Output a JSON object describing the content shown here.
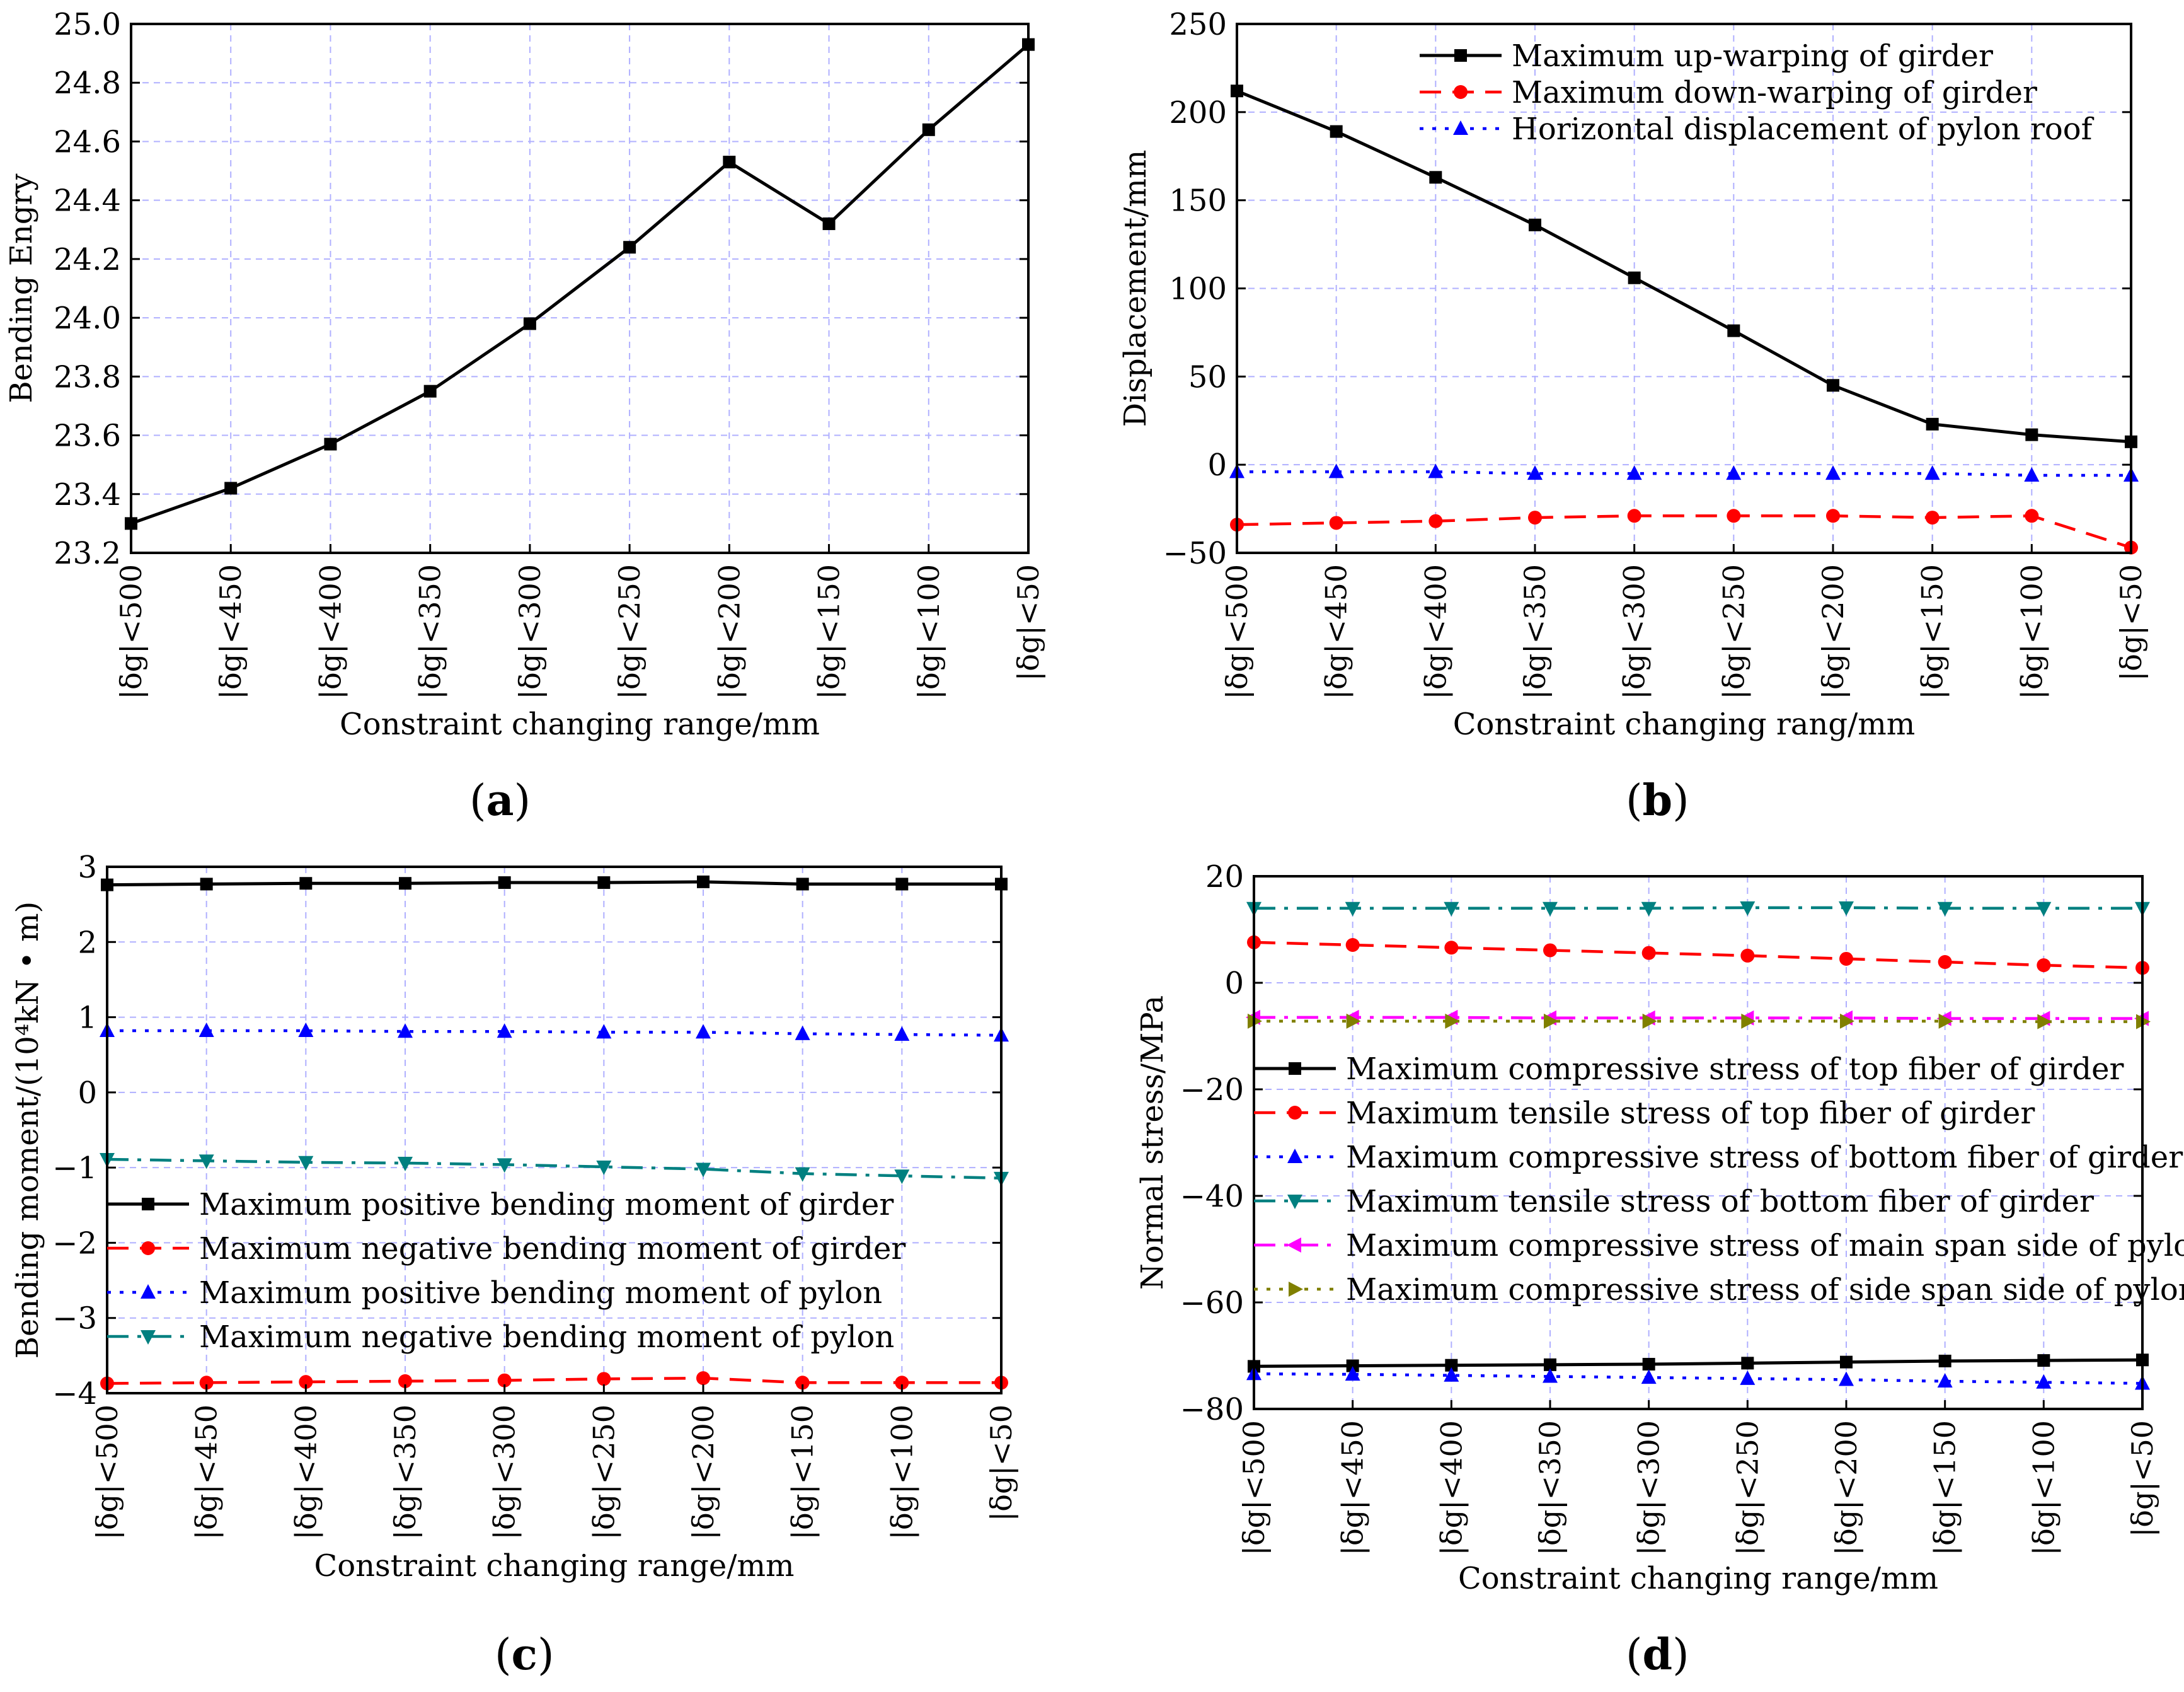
{
  "colors": {
    "black": "#000000",
    "red": "#ff0000",
    "blue": "#0000ff",
    "teal": "#008080",
    "magenta": "#ff00ff",
    "olive": "#808000",
    "grid": "#b0b0ff"
  },
  "x_categories": [
    "|δg|<500",
    "|δg|<450",
    "|δg|<400",
    "|δg|<350",
    "|δg|<300",
    "|δg|<250",
    "|δg|<200",
    "|δg|<150",
    "|δg|<100",
    "|δg|<50"
  ],
  "panel_labels": [
    "a",
    "b",
    "c",
    "d"
  ],
  "chart_data": [
    {
      "id": "a",
      "type": "line",
      "title": "",
      "xlabel": "Constraint changing range/mm",
      "ylabel": "Bending Engry",
      "ylim": [
        23.2,
        25.0
      ],
      "yticks": [
        23.2,
        23.4,
        23.6,
        23.8,
        24.0,
        24.2,
        24.4,
        24.6,
        24.8,
        25.0
      ],
      "ytick_labels": [
        "23.2",
        "23.4",
        "23.6",
        "23.8",
        "24.0",
        "24.2",
        "24.4",
        "24.6",
        "24.8",
        "25.0"
      ],
      "grid": true,
      "legend": "none",
      "series": [
        {
          "name": "Bending energy",
          "color": "black",
          "dash": "solid",
          "marker": "square",
          "values": [
            23.3,
            23.42,
            23.57,
            23.75,
            23.98,
            24.24,
            24.53,
            24.32,
            24.64,
            24.93
          ]
        }
      ]
    },
    {
      "id": "b",
      "type": "line",
      "title": "",
      "xlabel": "Constraint changing rang/mm",
      "ylabel": "Displacement/mm",
      "ylim": [
        -50,
        250
      ],
      "yticks": [
        -50,
        0,
        50,
        100,
        150,
        200,
        250
      ],
      "ytick_labels": [
        "−50",
        "0",
        "50",
        "100",
        "150",
        "200",
        "250"
      ],
      "grid": true,
      "legend": "top-right",
      "series": [
        {
          "name": "Maximum up-warping of girder",
          "color": "black",
          "dash": "solid",
          "marker": "square",
          "values": [
            212,
            189,
            163,
            136,
            106,
            76,
            45,
            23,
            17,
            13
          ]
        },
        {
          "name": "Maximum down-warping of girder",
          "color": "red",
          "dash": "dash",
          "marker": "circle",
          "values": [
            -34,
            -33,
            -32,
            -30,
            -29,
            -29,
            -29,
            -30,
            -29,
            -47
          ]
        },
        {
          "name": "Horizontal displacement of pylon roof",
          "color": "blue",
          "dash": "dot",
          "marker": "triangle-up",
          "values": [
            -4,
            -4,
            -4,
            -5,
            -5,
            -5,
            -5,
            -5,
            -6,
            -6
          ]
        }
      ]
    },
    {
      "id": "c",
      "type": "line",
      "title": "",
      "xlabel": "Constraint changing range/mm",
      "ylabel": "Bending moment/(10⁴kN • m)",
      "ylim": [
        -4,
        3
      ],
      "yticks": [
        -4,
        -3,
        -2,
        -1,
        0,
        1,
        2,
        3
      ],
      "ytick_labels": [
        "−4",
        "−3",
        "−2",
        "−1",
        "0",
        "1",
        "2",
        "3"
      ],
      "grid": true,
      "legend": "lower-left",
      "series": [
        {
          "name": "Maximum positive bending moment of girder",
          "color": "black",
          "dash": "solid",
          "marker": "square",
          "values": [
            2.76,
            2.77,
            2.78,
            2.78,
            2.79,
            2.79,
            2.8,
            2.77,
            2.77,
            2.77
          ]
        },
        {
          "name": "Maximum negative bending moment of girder",
          "color": "red",
          "dash": "dash",
          "marker": "circle",
          "values": [
            -3.87,
            -3.86,
            -3.85,
            -3.84,
            -3.83,
            -3.81,
            -3.8,
            -3.86,
            -3.86,
            -3.86
          ]
        },
        {
          "name": "Maximum positive bending moment of pylon",
          "color": "blue",
          "dash": "dot",
          "marker": "triangle-up",
          "values": [
            0.82,
            0.82,
            0.82,
            0.81,
            0.81,
            0.8,
            0.8,
            0.78,
            0.77,
            0.76
          ]
        },
        {
          "name": "Maximum negative bending moment of pylon",
          "color": "teal",
          "dash": "dashdot",
          "marker": "triangle-down",
          "values": [
            -0.89,
            -0.91,
            -0.93,
            -0.94,
            -0.96,
            -0.99,
            -1.02,
            -1.08,
            -1.11,
            -1.14
          ]
        }
      ]
    },
    {
      "id": "d",
      "type": "line",
      "title": "",
      "xlabel": "Constraint changing range/mm",
      "ylabel": "Normal stress/MPa",
      "ylim": [
        -80,
        20
      ],
      "yticks": [
        -80,
        -60,
        -40,
        -20,
        0,
        20
      ],
      "ytick_labels": [
        "−80",
        "−60",
        "−40",
        "−20",
        "0",
        "20"
      ],
      "grid": true,
      "legend": "center",
      "series": [
        {
          "name": "Maximum compressive stress of top fiber of girder",
          "color": "black",
          "dash": "solid",
          "marker": "square",
          "values": [
            -72.0,
            -71.9,
            -71.8,
            -71.7,
            -71.6,
            -71.4,
            -71.2,
            -71.0,
            -70.9,
            -70.8
          ]
        },
        {
          "name": "Maximum tensile stress of top fiber of girder",
          "color": "red",
          "dash": "dash",
          "marker": "circle",
          "values": [
            7.6,
            7.1,
            6.6,
            6.1,
            5.6,
            5.1,
            4.5,
            3.9,
            3.3,
            2.8
          ]
        },
        {
          "name": "Maximum compressive stress of bottom fiber of girder",
          "color": "blue",
          "dash": "dot",
          "marker": "triangle-up",
          "values": [
            -73.4,
            -73.5,
            -73.7,
            -73.9,
            -74.1,
            -74.3,
            -74.5,
            -74.8,
            -75.0,
            -75.2
          ]
        },
        {
          "name": "Maximum tensile stress of bottom fiber of girder",
          "color": "teal",
          "dash": "dashdot",
          "marker": "triangle-down",
          "values": [
            14.0,
            14.0,
            14.0,
            14.0,
            14.0,
            14.1,
            14.1,
            14.0,
            14.0,
            14.0
          ]
        },
        {
          "name": "Maximum compressive stress of main span side of pylon",
          "color": "magenta",
          "dash": "dashdot",
          "marker": "triangle-left",
          "values": [
            -6.5,
            -6.5,
            -6.5,
            -6.6,
            -6.6,
            -6.6,
            -6.6,
            -6.7,
            -6.7,
            -6.7
          ]
        },
        {
          "name": "Maximum compressive stress of side span side of pylon",
          "color": "olive",
          "dash": "dot",
          "marker": "triangle-right",
          "values": [
            -7.2,
            -7.2,
            -7.2,
            -7.2,
            -7.2,
            -7.2,
            -7.2,
            -7.2,
            -7.3,
            -7.3
          ]
        }
      ]
    }
  ]
}
